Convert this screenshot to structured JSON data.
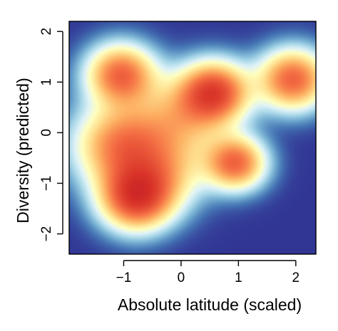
{
  "chart_data": {
    "type": "heatmap",
    "title": "",
    "xlabel": "Absolute latitude (scaled)",
    "ylabel": "Diversity (predicted)",
    "xlim": [
      -1.95,
      2.35
    ],
    "ylim": [
      -2.4,
      2.2
    ],
    "x_ticks": [
      -1,
      0,
      1,
      2
    ],
    "y_ticks": [
      -2,
      -1,
      0,
      1,
      2
    ],
    "x_tick_labels": [
      "−1",
      "0",
      "1",
      "2"
    ],
    "y_tick_labels": [
      "−2",
      "−1",
      "0",
      "1",
      "2"
    ],
    "grid": false,
    "colormap": [
      "#313695",
      "#4575b4",
      "#74add1",
      "#abd9e9",
      "#e0f3f8",
      "#ffffbf",
      "#fee090",
      "#fdae61",
      "#f46d43",
      "#d73027",
      "#a50026"
    ],
    "hotspots": [
      {
        "x": -0.78,
        "y": -1.3,
        "intensity": 1.0,
        "spread": 0.42
      },
      {
        "x": 0.58,
        "y": 0.8,
        "intensity": 0.98,
        "spread": 0.4
      },
      {
        "x": -1.05,
        "y": -0.25,
        "intensity": 0.75,
        "spread": 0.55
      },
      {
        "x": -1.05,
        "y": 1.15,
        "intensity": 0.85,
        "spread": 0.4
      },
      {
        "x": 0.95,
        "y": -0.6,
        "intensity": 0.85,
        "spread": 0.35
      },
      {
        "x": 1.95,
        "y": 1.05,
        "intensity": 0.88,
        "spread": 0.4
      },
      {
        "x": 0.0,
        "y": 0.3,
        "intensity": 0.45,
        "spread": 0.55
      },
      {
        "x": -0.3,
        "y": -0.8,
        "intensity": 0.4,
        "spread": 0.5
      }
    ]
  }
}
